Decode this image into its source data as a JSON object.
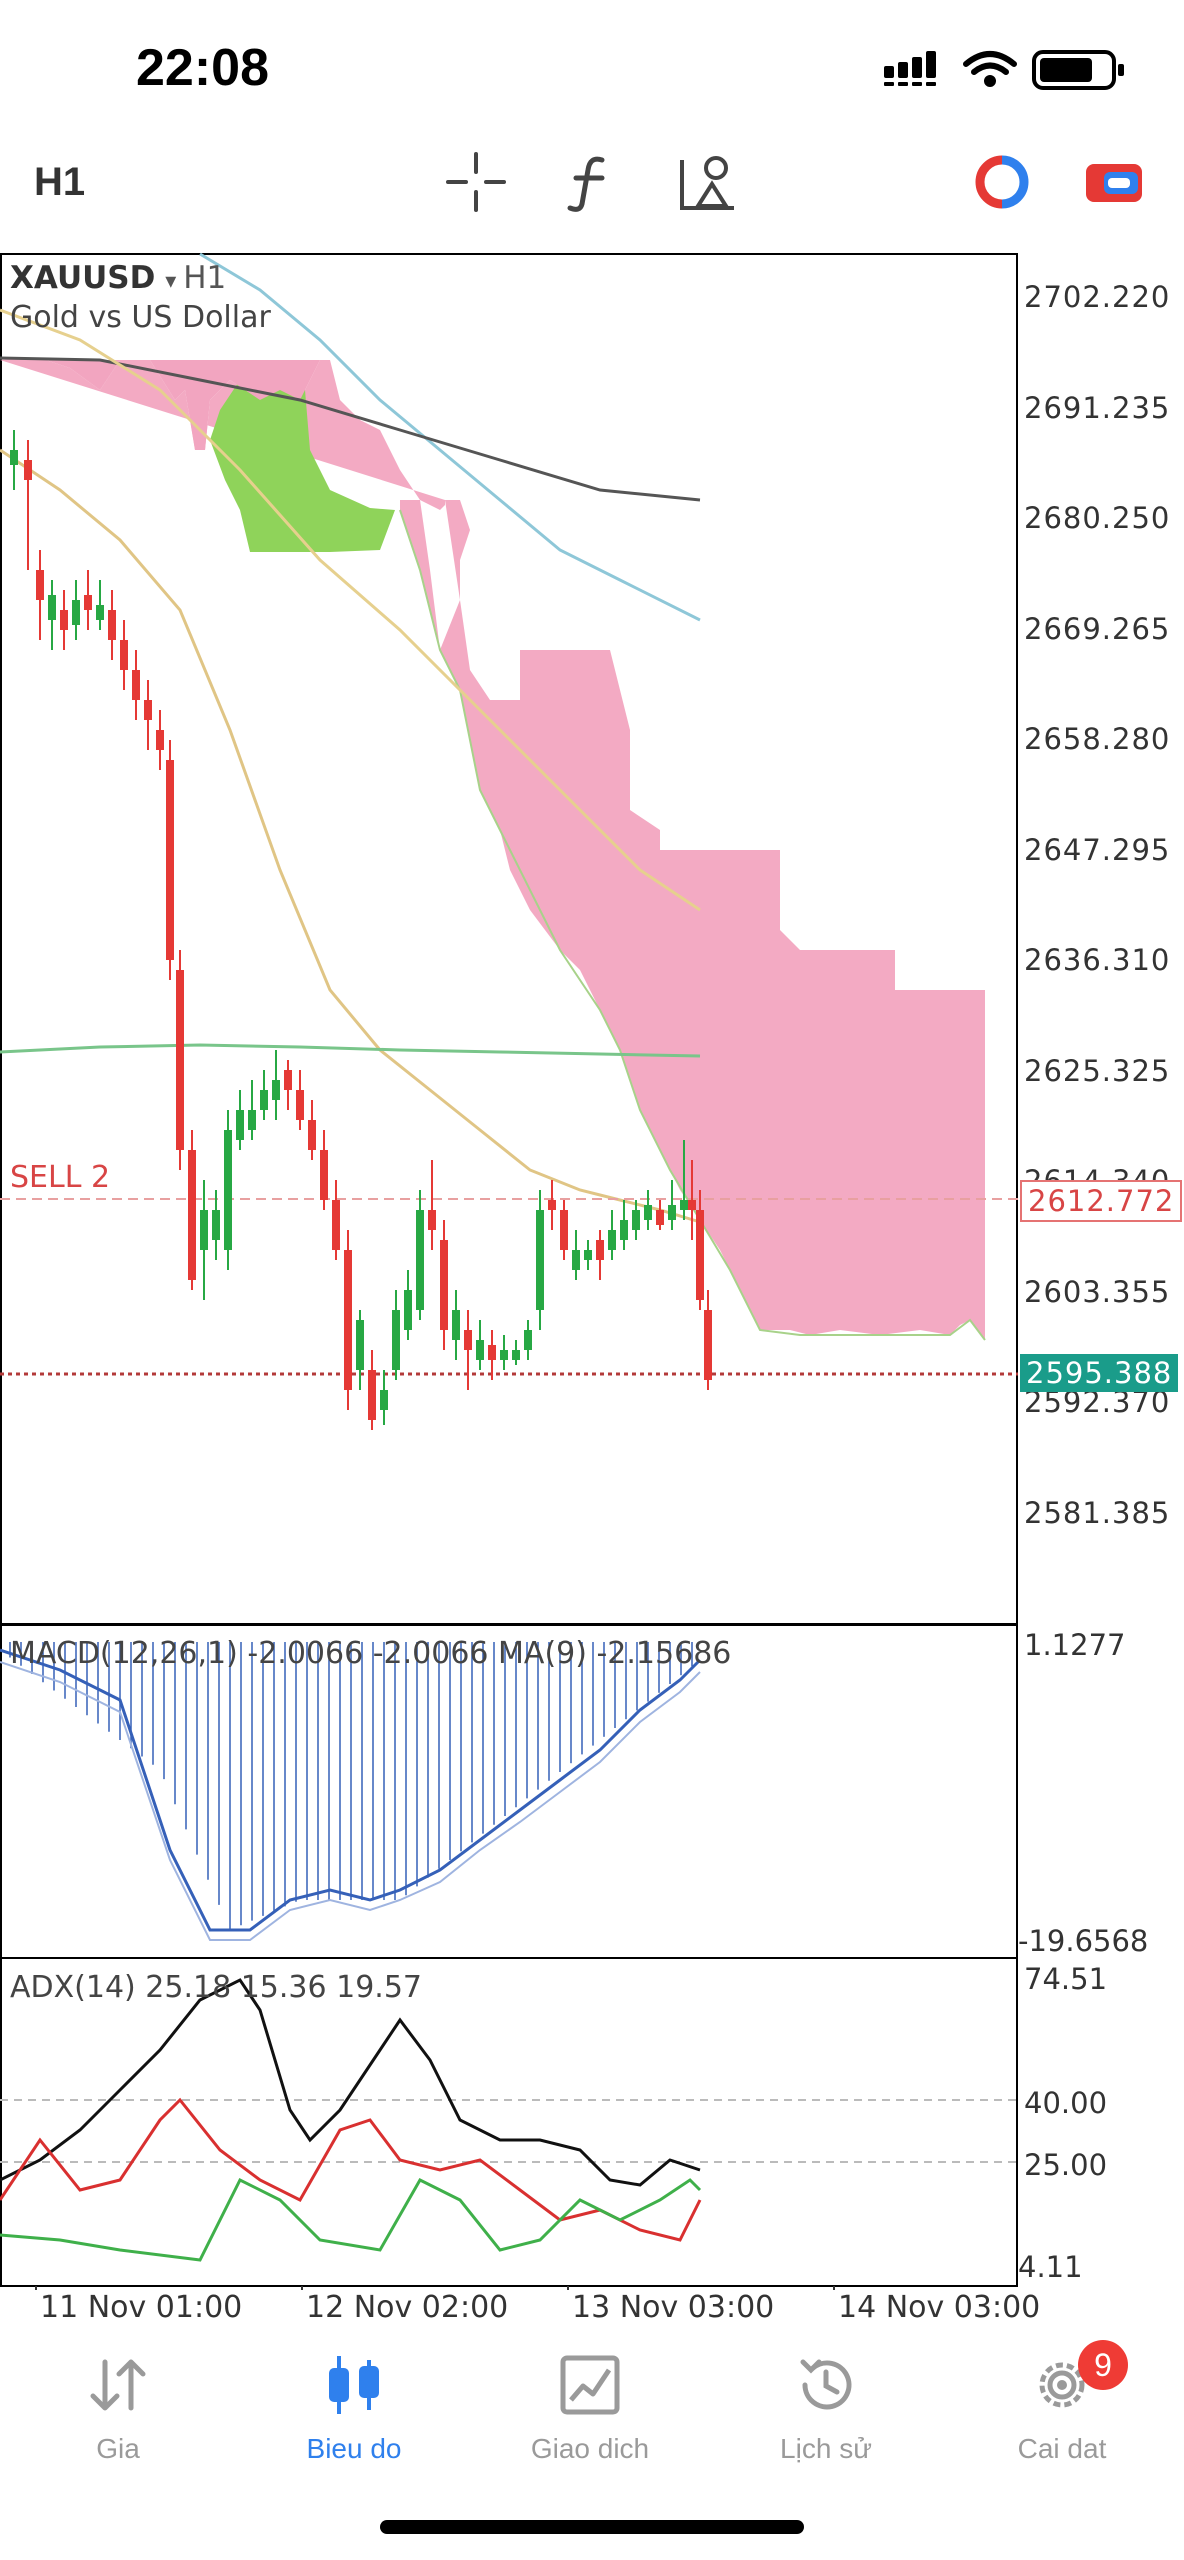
{
  "status_bar": {
    "time": "22:08"
  },
  "toolbar": {
    "timeframe": "H1",
    "tools": [
      "crosshair-icon",
      "indicator-f-icon",
      "objects-icon",
      "trade-icon",
      "account-icon"
    ]
  },
  "chart": {
    "symbol": "XAUUSD",
    "symbol_timeframe": "H1",
    "description": "Gold vs US Dollar",
    "sell_label": "SELL 2",
    "price_axis": [
      "2702.220",
      "2691.235",
      "2680.250",
      "2669.265",
      "2658.280",
      "2647.295",
      "2636.310",
      "2625.325",
      "2614.340",
      "2603.355",
      "2592.370",
      "2581.385"
    ],
    "sell_price": "2612.772",
    "current_price": "2595.388",
    "colors": {
      "bull": "#27a844",
      "bear": "#e53935",
      "kumo_bear": "#f2a5c0",
      "kumo_bull": "#8fd35a",
      "price_box": "#1a9c8a"
    }
  },
  "macd": {
    "label": "MACD(12,26,1) -2.0066 -2.0066 MA(9) -2.15686",
    "axis_top": "1.1277",
    "axis_bottom": "-19.6568"
  },
  "adx": {
    "label": "ADX(14) 25.18 15.36 19.57",
    "axis": [
      "74.51",
      "40.00",
      "25.00",
      "4.11"
    ]
  },
  "time_axis": [
    "11 Nov 01:00",
    "12 Nov 02:00",
    "13 Nov 03:00",
    "14 Nov 03:00"
  ],
  "nav": {
    "items": [
      {
        "label": "Gia",
        "icon": "quotes-arrows-icon"
      },
      {
        "label": "Bieu do",
        "icon": "chart-candles-icon"
      },
      {
        "label": "Giao dich",
        "icon": "trade-chart-icon"
      },
      {
        "label": "Lịch sử",
        "icon": "history-icon"
      },
      {
        "label": "Cai dat",
        "icon": "settings-gear-icon"
      }
    ],
    "settings_badge": "9"
  }
}
